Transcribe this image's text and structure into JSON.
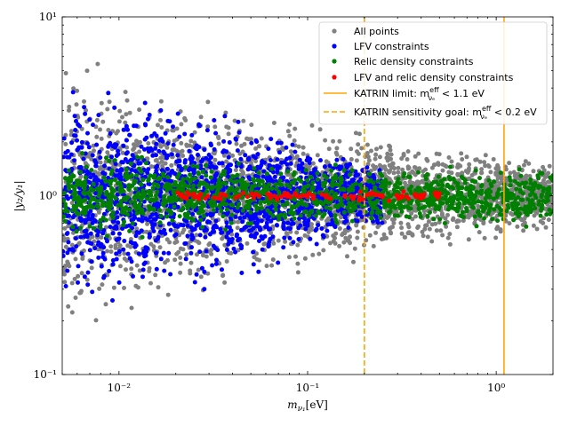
{
  "chart_data": {
    "type": "scatter",
    "title": "",
    "xlabel": "m_{ν1} [eV]",
    "ylabel": "|y2/y1|",
    "xlabel_parts": {
      "main": "m",
      "sub": "ν₁",
      "unit": "[eV]"
    },
    "ylabel_text": "|y₂/y₁|",
    "xscale": "log",
    "yscale": "log",
    "xlim": [
      0.005,
      2.0
    ],
    "ylim": [
      0.1,
      10
    ],
    "x_ticks": [
      {
        "value": 0.01,
        "label": "10⁻²"
      },
      {
        "value": 0.1,
        "label": "10⁻¹"
      },
      {
        "value": 1,
        "label": "10⁰"
      }
    ],
    "y_ticks": [
      {
        "value": 0.1,
        "label": "10⁻¹"
      },
      {
        "value": 1,
        "label": "10⁰"
      },
      {
        "value": 10,
        "label": "10¹"
      }
    ],
    "grid": false,
    "legend_position": "top-right",
    "series": [
      {
        "name": "All points",
        "color": "#808080",
        "kind": "scatter",
        "band_center_y": [
          [
            0.005,
            1.0
          ],
          [
            2.0,
            1.0
          ]
        ],
        "band_log10_halfwidth": [
          [
            0.005,
            0.75
          ],
          [
            0.05,
            0.5
          ],
          [
            0.3,
            0.32
          ],
          [
            2.0,
            0.2
          ]
        ],
        "count": 2600,
        "seed": 11
      },
      {
        "name": "LFV constraints",
        "color": "#0000ff",
        "kind": "scatter",
        "band_center_y": [
          [
            0.005,
            1.0
          ],
          [
            0.2,
            1.0
          ]
        ],
        "band_log10_halfwidth": [
          [
            0.005,
            0.62
          ],
          [
            0.03,
            0.5
          ],
          [
            0.1,
            0.32
          ],
          [
            0.2,
            0.18
          ]
        ],
        "x_range": [
          0.005,
          0.25
        ],
        "count": 1700,
        "seed": 23
      },
      {
        "name": "Relic density constraints",
        "color": "#008000",
        "kind": "scatter",
        "band_center_y": [
          [
            0.005,
            1.0
          ],
          [
            2.0,
            1.0
          ]
        ],
        "band_log10_halfwidth": [
          [
            0.005,
            0.25
          ],
          [
            0.1,
            0.17
          ],
          [
            2.0,
            0.17
          ]
        ],
        "count": 1300,
        "seed": 37
      },
      {
        "name": "LFV and relic density constraints",
        "color": "#ff0000",
        "kind": "scatter",
        "band_center_y": [
          [
            0.005,
            1.0
          ],
          [
            2.0,
            1.0
          ]
        ],
        "band_log10_halfwidth": [
          [
            0.005,
            0.03
          ],
          [
            2.0,
            0.03
          ]
        ],
        "x_range": [
          0.02,
          0.5
        ],
        "count": 110,
        "seed": 51
      }
    ],
    "vertical_lines": [
      {
        "name": "KATRIN limit",
        "x": 1.1,
        "color": "#ffa500",
        "style": "solid",
        "label": "KATRIN limit: m_ν_e^eff < 1.1 eV"
      },
      {
        "name": "KATRIN sensitivity goal",
        "x": 0.2,
        "color": "#ffa500",
        "style": "dashed",
        "label": "KATRIN sensitivity goal: m_ν_e^eff < 0.2 eV"
      }
    ],
    "legend": {
      "entries": [
        {
          "marker": "dot",
          "color": "#808080",
          "label": "All points"
        },
        {
          "marker": "dot",
          "color": "#0000ff",
          "label": "LFV constraints"
        },
        {
          "marker": "dot",
          "color": "#008000",
          "label": "Relic density constraints"
        },
        {
          "marker": "dot",
          "color": "#ff0000",
          "label": "LFV and relic density constraints"
        },
        {
          "marker": "line",
          "color": "#ffa500",
          "label_prefix": "KATRIN limit:  m",
          "label_sup": "eff",
          "label_sub": "νₑ",
          "label_suffix": " < 1.1 eV"
        },
        {
          "marker": "dashed",
          "color": "#ffa500",
          "label_prefix": "KATRIN sensitivity goal:  m",
          "label_sup": "eff",
          "label_sub": "νₑ",
          "label_suffix": " < 0.2 eV"
        }
      ]
    }
  }
}
